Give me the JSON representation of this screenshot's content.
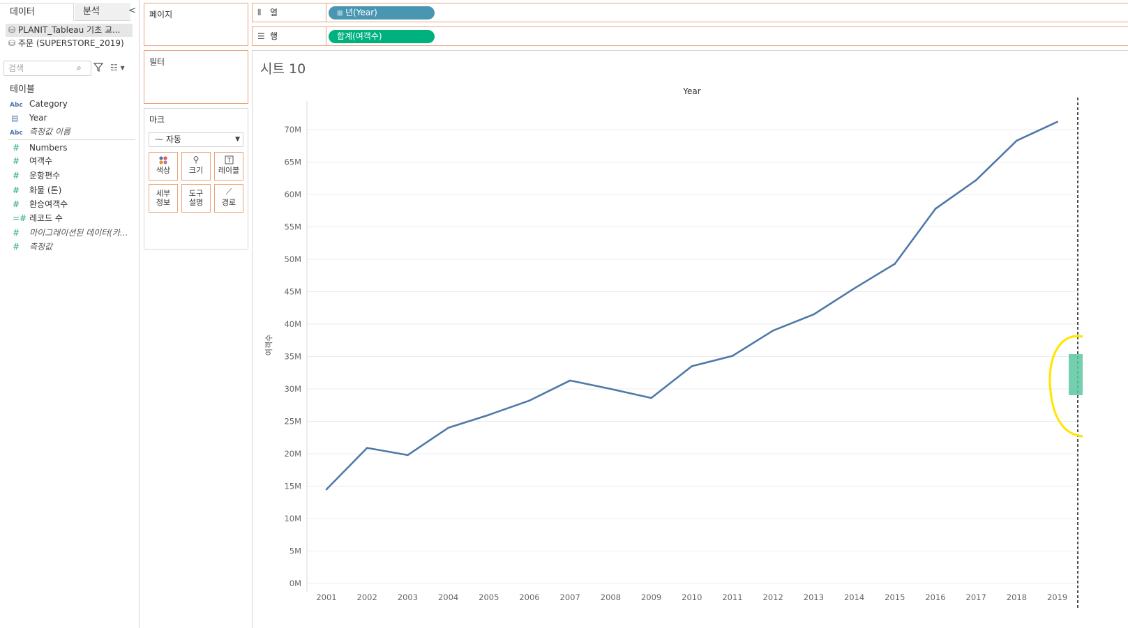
{
  "pane": {
    "tab_data": "데이터",
    "tab_analysis": "분석",
    "collapse": "<",
    "datasources": [
      {
        "label": "PLANIT_Tableau 기초 교..."
      },
      {
        "label": "주문 (SUPERSTORE_2019)"
      }
    ],
    "search_placeholder": "검색",
    "tables_heading": "테이블",
    "dimensions": [
      {
        "type": "Abc",
        "label": "Category"
      },
      {
        "type": "date",
        "label": "Year"
      },
      {
        "type": "Abc",
        "label": "측정값 이름",
        "italic": true
      }
    ],
    "measures": [
      {
        "label": "Numbers"
      },
      {
        "label": "여객수"
      },
      {
        "label": "운항편수"
      },
      {
        "label": "화물 (톤)"
      },
      {
        "label": "환승여객수"
      },
      {
        "label": "레코드 수"
      },
      {
        "label": "마이그레이션된 데이터(카...",
        "italic": true
      },
      {
        "label": "측정값",
        "italic": true
      }
    ]
  },
  "shelves": {
    "pages": "페이지",
    "filters": "필터",
    "marks": "마크",
    "mark_type": "자동",
    "mark_buttons": [
      "색상",
      "크기",
      "레이블",
      "세부\n정보",
      "도구\n설명",
      "경로"
    ],
    "columns_label": "열",
    "rows_label": "행",
    "columns_pill": "년(Year)",
    "rows_pill": "합계(여객수)"
  },
  "sheet": {
    "title": "시트 10"
  },
  "colors": {
    "line": "#4e79a7",
    "highlight": "#ffe600",
    "drop_target": "#5cc7a0"
  },
  "chart_data": {
    "type": "line",
    "title": "Year",
    "xlabel": "",
    "ylabel": "여객수",
    "x": [
      "2001",
      "2002",
      "2003",
      "2004",
      "2005",
      "2006",
      "2007",
      "2008",
      "2009",
      "2010",
      "2011",
      "2012",
      "2013",
      "2014",
      "2015",
      "2016",
      "2017",
      "2018",
      "2019"
    ],
    "series": [
      {
        "values": [
          14.5,
          20.9,
          19.8,
          24.0,
          26.0,
          28.2,
          31.3,
          30.0,
          28.6,
          33.5,
          35.1,
          39.0,
          41.5,
          45.5,
          49.3,
          57.8,
          62.2,
          68.3,
          71.2
        ]
      }
    ],
    "y_ticks": [
      "0M",
      "5M",
      "10M",
      "15M",
      "20M",
      "25M",
      "30M",
      "35M",
      "40M",
      "45M",
      "50M",
      "55M",
      "60M",
      "65M",
      "70M"
    ],
    "ylim": [
      0,
      73
    ],
    "grid": true
  }
}
